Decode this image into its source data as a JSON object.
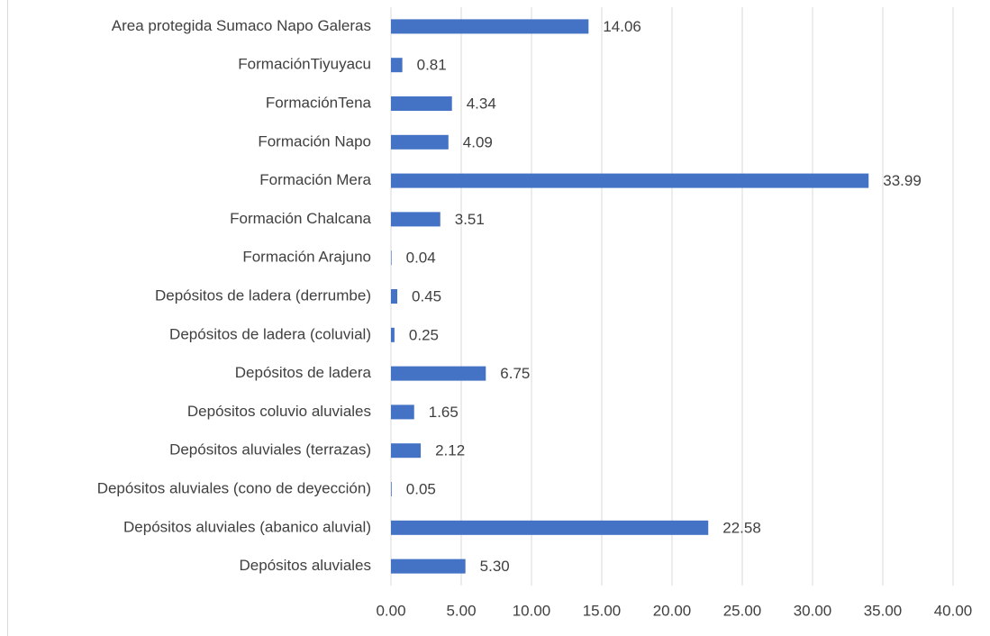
{
  "chart_data": {
    "type": "bar",
    "orientation": "horizontal",
    "categories": [
      "Depósitos aluviales",
      "Depósitos aluviales (abanico aluvial)",
      "Depósitos aluviales (cono de deyección)",
      "Depósitos aluviales (terrazas)",
      "Depósitos coluvio aluviales",
      "Depósitos de ladera",
      "Depósitos de ladera (coluvial)",
      "Depósitos de ladera (derrumbe)",
      "Formación Arajuno",
      "Formación Chalcana",
      "Formación Mera",
      "Formación Napo",
      "FormaciónTena",
      "FormaciónTiyuyacu",
      "Area protegida Sumaco Napo Galeras"
    ],
    "values": [
      5.3,
      22.58,
      0.05,
      2.12,
      1.65,
      6.75,
      0.25,
      0.45,
      0.04,
      3.51,
      33.99,
      4.09,
      4.34,
      0.81,
      14.06
    ],
    "value_labels": [
      "5.30",
      "22.58",
      "0.05",
      "2.12",
      "1.65",
      "6.75",
      "0.25",
      "0.45",
      "0.04",
      "3.51",
      "33.99",
      "4.09",
      "4.34",
      "0.81",
      "14.06"
    ],
    "color": "#4472c4",
    "xlim": [
      0,
      40
    ],
    "xticks": [
      {
        "value": 0,
        "label": "0.00"
      },
      {
        "value": 5,
        "label": "5.00"
      },
      {
        "value": 10,
        "label": "10.00"
      },
      {
        "value": 15,
        "label": "15.00"
      },
      {
        "value": 20,
        "label": "20.00"
      },
      {
        "value": 25,
        "label": "25.00"
      },
      {
        "value": 30,
        "label": "30.00"
      },
      {
        "value": 35,
        "label": "35.00"
      },
      {
        "value": 40,
        "label": "40.00"
      }
    ],
    "grid": true
  }
}
